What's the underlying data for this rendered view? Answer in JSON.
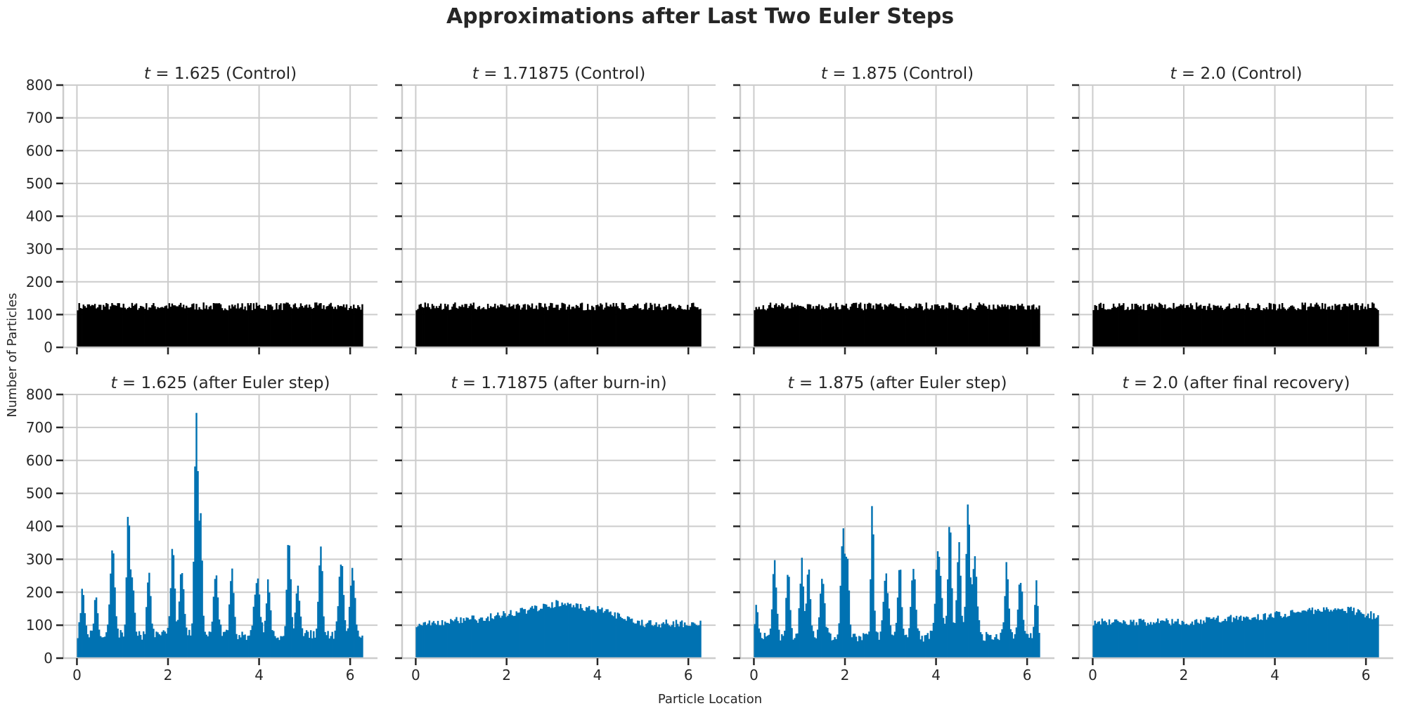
{
  "figure": {
    "title": "Approximations after Last Two Euler Steps",
    "xlabel": "Particle Location",
    "ylabel": "Number of Particles"
  },
  "colors": {
    "control": "#000000",
    "approx": "#0072b2",
    "grid": "#cccccc",
    "axis": "#262626"
  },
  "chart_data": [
    {
      "type": "bar",
      "panel": "top-1",
      "title_prefix": "t = ",
      "title": "1.625 (Control)",
      "xlabel": "",
      "ylabel": "",
      "xlim": [
        -0.3,
        6.6
      ],
      "ylim": [
        0,
        800
      ],
      "xticks": [
        0,
        2,
        4,
        6
      ],
      "yticks": [
        0,
        100,
        200,
        300,
        400,
        500,
        600,
        700,
        800
      ],
      "grid": true,
      "color": "#000000",
      "bins": {
        "start": 0,
        "end": 6.28,
        "count": 200
      },
      "profile": [
        [
          0,
          125
        ],
        [
          6.28,
          125
        ]
      ],
      "noise": 12,
      "peaks": []
    },
    {
      "type": "bar",
      "panel": "top-2",
      "title_prefix": "t = ",
      "title": "1.71875 (Control)",
      "xlim": [
        -0.3,
        6.6
      ],
      "ylim": [
        0,
        800
      ],
      "xticks": [
        0,
        2,
        4,
        6
      ],
      "grid": true,
      "color": "#000000",
      "bins": {
        "start": 0,
        "end": 6.28,
        "count": 200
      },
      "profile": [
        [
          0,
          125
        ],
        [
          6.28,
          125
        ]
      ],
      "noise": 12,
      "peaks": []
    },
    {
      "type": "bar",
      "panel": "top-3",
      "title_prefix": "t = ",
      "title": "1.875 (Control)",
      "xlim": [
        -0.3,
        6.6
      ],
      "ylim": [
        0,
        800
      ],
      "xticks": [
        0,
        2,
        4,
        6
      ],
      "grid": true,
      "color": "#000000",
      "bins": {
        "start": 0,
        "end": 6.28,
        "count": 200
      },
      "profile": [
        [
          0,
          125
        ],
        [
          6.28,
          125
        ]
      ],
      "noise": 12,
      "peaks": []
    },
    {
      "type": "bar",
      "panel": "top-4",
      "title_prefix": "t = ",
      "title": "2.0 (Control)",
      "xlim": [
        -0.3,
        6.6
      ],
      "ylim": [
        0,
        800
      ],
      "xticks": [
        0,
        2,
        4,
        6
      ],
      "grid": true,
      "color": "#000000",
      "bins": {
        "start": 0,
        "end": 6.28,
        "count": 200
      },
      "profile": [
        [
          0,
          125
        ],
        [
          6.28,
          125
        ]
      ],
      "noise": 12,
      "peaks": []
    },
    {
      "type": "bar",
      "panel": "bottom-1",
      "title_prefix": "t = ",
      "title": "1.625 (after Euler step)",
      "xlabel": "Particle Location",
      "ylabel": "Number of Particles",
      "xlim": [
        -0.3,
        6.6
      ],
      "ylim": [
        0,
        800
      ],
      "xticks": [
        0,
        2,
        4,
        6
      ],
      "yticks": [
        0,
        100,
        200,
        300,
        400,
        500,
        600,
        700,
        800
      ],
      "grid": true,
      "color": "#0072b2",
      "bins": {
        "start": 0,
        "end": 6.28,
        "count": 200
      },
      "profile": [
        [
          0,
          70
        ],
        [
          6.28,
          70
        ]
      ],
      "noise": 15,
      "peaks": [
        [
          0.12,
          140,
          0.04
        ],
        [
          0.42,
          120,
          0.04
        ],
        [
          0.78,
          260,
          0.05
        ],
        [
          1.12,
          330,
          0.03
        ],
        [
          1.2,
          170,
          0.05
        ],
        [
          1.58,
          200,
          0.04
        ],
        [
          2.1,
          280,
          0.04
        ],
        [
          2.3,
          200,
          0.05
        ],
        [
          2.62,
          675,
          0.04
        ],
        [
          2.72,
          340,
          0.03
        ],
        [
          3.05,
          180,
          0.05
        ],
        [
          3.4,
          210,
          0.04
        ],
        [
          3.95,
          170,
          0.06
        ],
        [
          4.2,
          170,
          0.04
        ],
        [
          4.65,
          290,
          0.04
        ],
        [
          4.85,
          140,
          0.05
        ],
        [
          5.35,
          270,
          0.04
        ],
        [
          5.8,
          230,
          0.05
        ],
        [
          6.05,
          190,
          0.05
        ]
      ]
    },
    {
      "type": "bar",
      "panel": "bottom-2",
      "title_prefix": "t = ",
      "title": "1.71875 (after burn-in)",
      "xlabel": "Particle Location",
      "xlim": [
        -0.3,
        6.6
      ],
      "ylim": [
        0,
        800
      ],
      "xticks": [
        0,
        2,
        4,
        6
      ],
      "grid": true,
      "color": "#0072b2",
      "bins": {
        "start": 0,
        "end": 6.28,
        "count": 200
      },
      "profile": [
        [
          0,
          105
        ],
        [
          1.5,
          120
        ],
        [
          3.1,
          165
        ],
        [
          4.0,
          150
        ],
        [
          5.0,
          105
        ],
        [
          6.28,
          105
        ]
      ],
      "noise": 12,
      "peaks": []
    },
    {
      "type": "bar",
      "panel": "bottom-3",
      "title_prefix": "t = ",
      "title": "1.875 (after Euler step)",
      "xlabel": "Particle Location",
      "xlim": [
        -0.3,
        6.6
      ],
      "ylim": [
        0,
        800
      ],
      "xticks": [
        0,
        2,
        4,
        6
      ],
      "grid": true,
      "color": "#0072b2",
      "bins": {
        "start": 0,
        "end": 6.28,
        "count": 200
      },
      "profile": [
        [
          0,
          65
        ],
        [
          6.28,
          65
        ]
      ],
      "noise": 15,
      "peaks": [
        [
          0.05,
          100,
          0.03
        ],
        [
          0.45,
          240,
          0.04
        ],
        [
          0.75,
          190,
          0.04
        ],
        [
          1.05,
          230,
          0.04
        ],
        [
          1.2,
          210,
          0.04
        ],
        [
          1.5,
          180,
          0.05
        ],
        [
          1.95,
          320,
          0.04
        ],
        [
          2.05,
          220,
          0.04
        ],
        [
          2.6,
          415,
          0.03
        ],
        [
          2.9,
          180,
          0.05
        ],
        [
          3.2,
          220,
          0.04
        ],
        [
          3.5,
          210,
          0.05
        ],
        [
          4.05,
          260,
          0.06
        ],
        [
          4.3,
          340,
          0.04
        ],
        [
          4.5,
          290,
          0.04
        ],
        [
          4.7,
          400,
          0.04
        ],
        [
          4.85,
          240,
          0.05
        ],
        [
          5.55,
          220,
          0.04
        ],
        [
          5.85,
          170,
          0.05
        ],
        [
          6.2,
          180,
          0.03
        ]
      ]
    },
    {
      "type": "bar",
      "panel": "bottom-4",
      "title_prefix": "t = ",
      "title": "2.0 (after final recovery)",
      "xlabel": "Particle Location",
      "xlim": [
        -0.3,
        6.6
      ],
      "ylim": [
        0,
        800
      ],
      "xticks": [
        0,
        2,
        4,
        6
      ],
      "grid": true,
      "color": "#0072b2",
      "bins": {
        "start": 0,
        "end": 6.28,
        "count": 200
      },
      "profile": [
        [
          0,
          110
        ],
        [
          2.0,
          110
        ],
        [
          4.0,
          130
        ],
        [
          5.4,
          155
        ],
        [
          6.28,
          125
        ]
      ],
      "noise": 12,
      "peaks": []
    }
  ]
}
